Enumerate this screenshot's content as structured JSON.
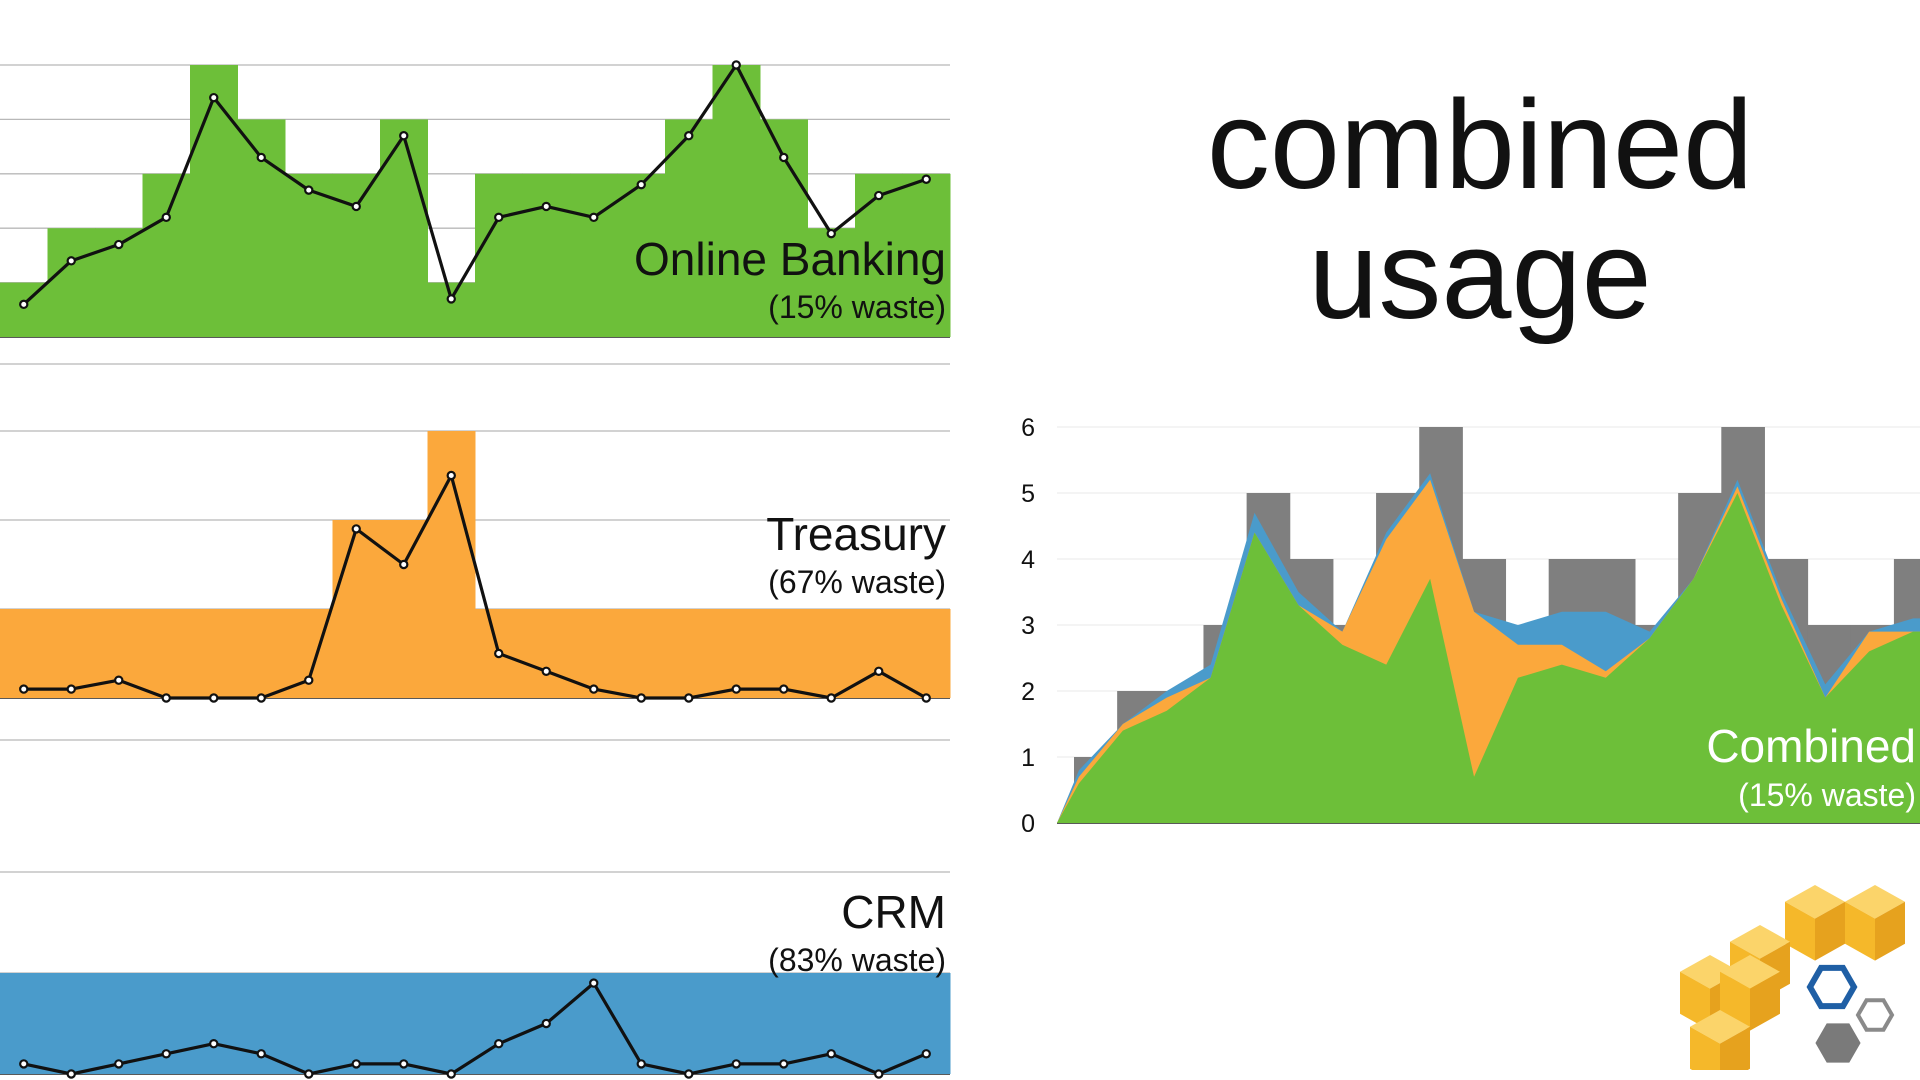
{
  "slide": {
    "title_line1": "combined",
    "title_line2": "usage"
  },
  "colors": {
    "online_banking": "#6dbf39",
    "treasury": "#fba83c",
    "crm": "#4a9bcb",
    "capacity_gray": "#7f7f7f",
    "usage_line": "#111111",
    "logo_orange": "#f5b82a",
    "logo_blue": "#1f5fa5",
    "logo_gray": "#7a7a7a"
  },
  "logo": {
    "icon": "aws-logo-cubes-icon"
  },
  "chart_data": [
    {
      "type": "area",
      "id": "online-banking",
      "label": "Online Banking",
      "sublabel": "(15% waste)",
      "x": [
        1,
        2,
        3,
        4,
        5,
        6,
        7,
        8,
        9,
        10,
        11,
        12,
        13,
        14,
        15,
        16,
        17,
        18,
        19,
        20
      ],
      "capacity": [
        1,
        2,
        2,
        3,
        5,
        4,
        3,
        3,
        4,
        1,
        3,
        3,
        3,
        3,
        4,
        5,
        4,
        2,
        3,
        3
      ],
      "usage": [
        0.6,
        1.4,
        1.7,
        2.2,
        4.4,
        3.3,
        2.7,
        2.4,
        3.7,
        0.7,
        2.2,
        2.4,
        2.2,
        2.8,
        3.7,
        5.0,
        3.3,
        1.9,
        2.6,
        2.9
      ],
      "ylim": [
        0,
        5
      ]
    },
    {
      "type": "area",
      "id": "treasury",
      "label": "Treasury",
      "sublabel": "(67% waste)",
      "x": [
        1,
        2,
        3,
        4,
        5,
        6,
        7,
        8,
        9,
        10,
        11,
        12,
        13,
        14,
        15,
        16,
        17,
        18,
        19,
        20
      ],
      "capacity": [
        1,
        1,
        1,
        1,
        1,
        1,
        1,
        2,
        2,
        3,
        1,
        1,
        1,
        1,
        1,
        1,
        1,
        1,
        1,
        1
      ],
      "usage": [
        0.1,
        0.1,
        0.2,
        0.0,
        0.0,
        0.0,
        0.2,
        1.9,
        1.5,
        2.5,
        0.5,
        0.3,
        0.1,
        0.0,
        0.0,
        0.1,
        0.1,
        0.0,
        0.3,
        0.0
      ],
      "ylim": [
        0,
        3
      ]
    },
    {
      "type": "area",
      "id": "crm",
      "label": "CRM",
      "sublabel": "(83% waste)",
      "x": [
        1,
        2,
        3,
        4,
        5,
        6,
        7,
        8,
        9,
        10,
        11,
        12,
        13,
        14,
        15,
        16,
        17,
        18,
        19,
        20
      ],
      "capacity": [
        1,
        1,
        1,
        1,
        1,
        1,
        1,
        1,
        1,
        1,
        1,
        1,
        1,
        1,
        1,
        1,
        1,
        1,
        1,
        1
      ],
      "usage": [
        0.1,
        0.0,
        0.1,
        0.2,
        0.3,
        0.2,
        0.0,
        0.1,
        0.1,
        0.0,
        0.3,
        0.5,
        0.9,
        0.1,
        0.0,
        0.1,
        0.1,
        0.2,
        0.0,
        0.2
      ],
      "ylim": [
        0,
        2
      ]
    },
    {
      "type": "area",
      "id": "combined",
      "label": "Combined",
      "sublabel": "(15% waste)",
      "x": [
        1,
        2,
        3,
        4,
        5,
        6,
        7,
        8,
        9,
        10,
        11,
        12,
        13,
        14,
        15,
        16,
        17,
        18,
        19,
        20
      ],
      "yticks": [
        0,
        1,
        2,
        3,
        4,
        5,
        6
      ],
      "ylim": [
        0,
        6
      ],
      "capacity": [
        1,
        2,
        2,
        3,
        5,
        4,
        3,
        5,
        6,
        4,
        3,
        4,
        4,
        3,
        5,
        6,
        4,
        3,
        3,
        4
      ],
      "series": [
        {
          "name": "Online Banking",
          "values": [
            0.6,
            1.4,
            1.7,
            2.2,
            4.4,
            3.3,
            2.7,
            2.4,
            3.7,
            0.7,
            2.2,
            2.4,
            2.2,
            2.8,
            3.7,
            5.0,
            3.3,
            1.9,
            2.6,
            2.9
          ]
        },
        {
          "name": "Treasury",
          "values": [
            0.1,
            0.1,
            0.2,
            0.0,
            0.0,
            0.0,
            0.2,
            1.9,
            1.5,
            2.5,
            0.5,
            0.3,
            0.1,
            0.0,
            0.0,
            0.1,
            0.1,
            0.0,
            0.3,
            0.0
          ]
        },
        {
          "name": "CRM",
          "values": [
            0.1,
            0.0,
            0.1,
            0.2,
            0.3,
            0.2,
            0.0,
            0.1,
            0.1,
            0.0,
            0.3,
            0.5,
            0.9,
            0.1,
            0.0,
            0.1,
            0.1,
            0.2,
            0.0,
            0.2
          ]
        }
      ]
    }
  ]
}
